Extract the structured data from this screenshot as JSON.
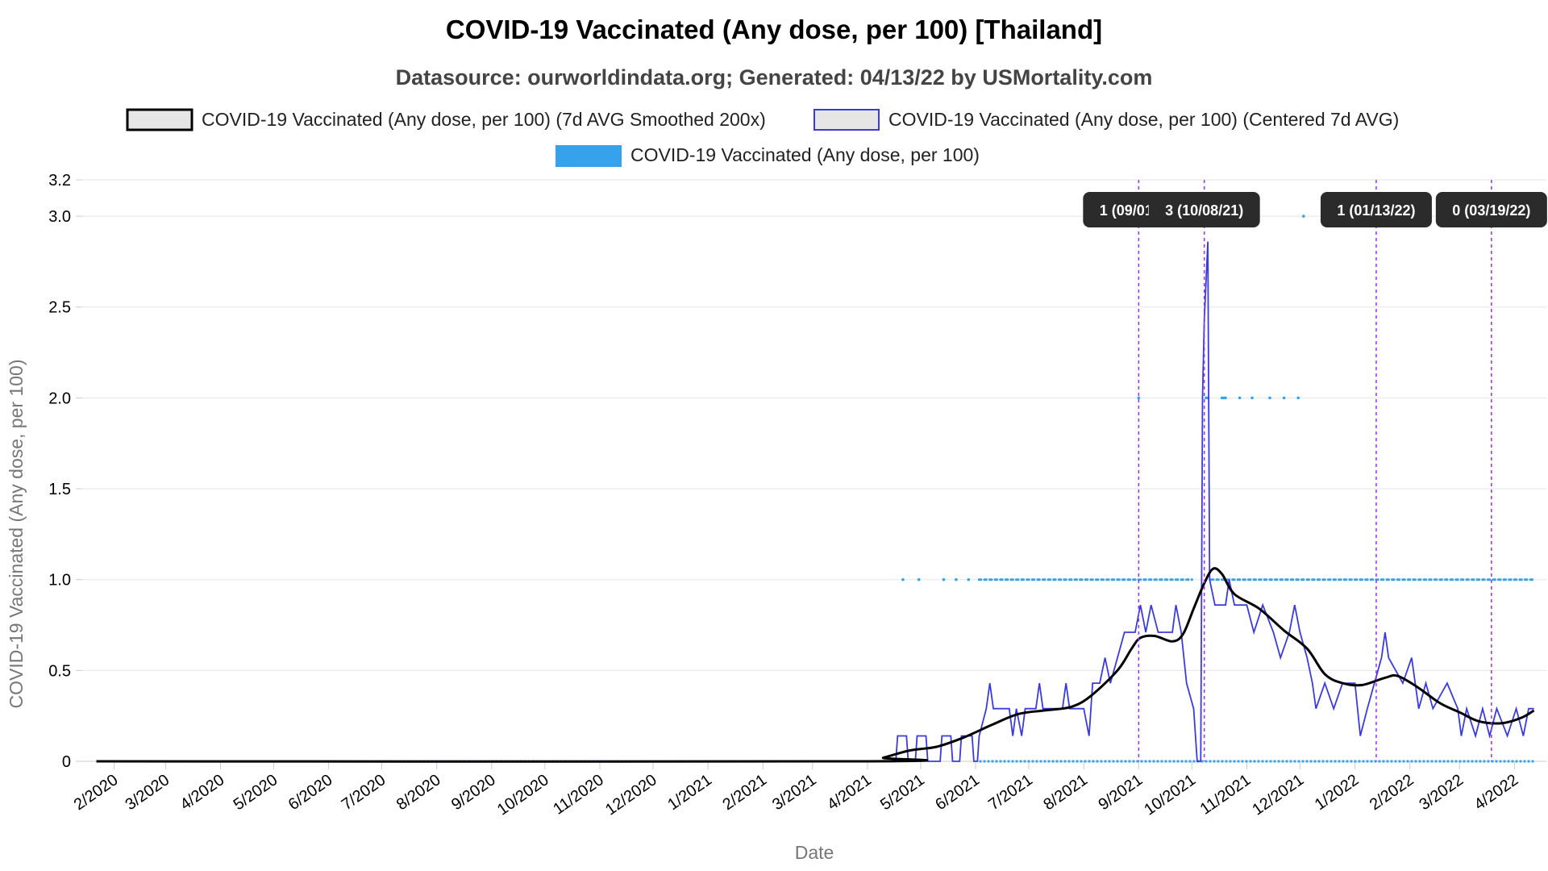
{
  "page": {
    "title": "COVID-19 Vaccinated (Any dose, per 100) [Thailand]",
    "subtitle": "Datasource: ourworldindata.org; Generated: 04/13/22 by USMortality.com"
  },
  "legend": [
    {
      "label": "COVID-19 Vaccinated (Any dose, per 100) (7d AVG Smoothed 200x)",
      "stroke": "#000000",
      "fill": "#e6e6e6"
    },
    {
      "label": "COVID-19 Vaccinated (Any dose, per 100) (Centered 7d AVG)",
      "stroke": "#3b3bdb",
      "fill": "#e6e6e6"
    },
    {
      "label": "COVID-19 Vaccinated (Any dose, per 100)",
      "stroke": "#36a2eb",
      "fill": "#36a2eb"
    }
  ],
  "colors": {
    "smoothed": "#000000",
    "centered": "#3b3bdb",
    "raw": "#36a2eb",
    "annotation_line": "#9b30ff",
    "annotation_box": "#2b2b2b",
    "grid": "#e5e5e5"
  },
  "chart_data": {
    "type": "line",
    "xlabel": "Date",
    "ylabel": "COVID-19 Vaccinated (Any dose, per 100)",
    "x_range": [
      "2020-01-22",
      "2022-04-12"
    ],
    "ylim": [
      0,
      3.2
    ],
    "yticks": [
      {
        "value": 0,
        "label": "0"
      },
      {
        "value": 0.5,
        "label": "0.5"
      },
      {
        "value": 1.0,
        "label": "1.0"
      },
      {
        "value": 1.5,
        "label": "1.5"
      },
      {
        "value": 2.0,
        "label": "2.0"
      },
      {
        "value": 2.5,
        "label": "2.5"
      },
      {
        "value": 3.0,
        "label": "3.0"
      },
      {
        "value": 3.2,
        "label": "3.2"
      }
    ],
    "xticks": [
      {
        "date": "2020-02-01",
        "label": "2/2020"
      },
      {
        "date": "2020-03-01",
        "label": "3/2020"
      },
      {
        "date": "2020-04-01",
        "label": "4/2020"
      },
      {
        "date": "2020-05-01",
        "label": "5/2020"
      },
      {
        "date": "2020-06-01",
        "label": "6/2020"
      },
      {
        "date": "2020-07-01",
        "label": "7/2020"
      },
      {
        "date": "2020-08-01",
        "label": "8/2020"
      },
      {
        "date": "2020-09-01",
        "label": "9/2020"
      },
      {
        "date": "2020-10-01",
        "label": "10/2020"
      },
      {
        "date": "2020-11-01",
        "label": "11/2020"
      },
      {
        "date": "2020-12-01",
        "label": "12/2020"
      },
      {
        "date": "2021-01-01",
        "label": "1/2021"
      },
      {
        "date": "2021-02-01",
        "label": "2/2021"
      },
      {
        "date": "2021-03-01",
        "label": "3/2021"
      },
      {
        "date": "2021-04-01",
        "label": "4/2021"
      },
      {
        "date": "2021-05-01",
        "label": "5/2021"
      },
      {
        "date": "2021-06-01",
        "label": "6/2021"
      },
      {
        "date": "2021-07-01",
        "label": "7/2021"
      },
      {
        "date": "2021-08-01",
        "label": "8/2021"
      },
      {
        "date": "2021-09-01",
        "label": "9/2021"
      },
      {
        "date": "2021-10-01",
        "label": "10/2021"
      },
      {
        "date": "2021-11-01",
        "label": "11/2021"
      },
      {
        "date": "2021-12-01",
        "label": "12/2021"
      },
      {
        "date": "2022-01-01",
        "label": "1/2022"
      },
      {
        "date": "2022-02-01",
        "label": "2/2022"
      },
      {
        "date": "2022-03-01",
        "label": "3/2022"
      },
      {
        "date": "2022-04-01",
        "label": "4/2022"
      }
    ],
    "grid": true,
    "legend_position": "top",
    "series": [
      {
        "name": "COVID-19 Vaccinated (Any dose, per 100) (7d AVG Smoothed 200x)",
        "style": "line",
        "points": [
          [
            "2020-01-22",
            0
          ],
          [
            "2021-03-31",
            0
          ],
          [
            "2021-04-10",
            0.02
          ],
          [
            "2021-04-25",
            0.06
          ],
          [
            "2021-05-10",
            0.08
          ],
          [
            "2021-05-25",
            0.13
          ],
          [
            "2021-06-10",
            0.2
          ],
          [
            "2021-06-25",
            0.26
          ],
          [
            "2021-07-10",
            0.28
          ],
          [
            "2021-07-25",
            0.3
          ],
          [
            "2021-08-05",
            0.36
          ],
          [
            "2021-08-20",
            0.5
          ],
          [
            "2021-08-28",
            0.62
          ],
          [
            "2021-09-02",
            0.68
          ],
          [
            "2021-09-10",
            0.69
          ],
          [
            "2021-09-20",
            0.66
          ],
          [
            "2021-09-26",
            0.7
          ],
          [
            "2021-10-02",
            0.84
          ],
          [
            "2021-10-08",
            0.98
          ],
          [
            "2021-10-13",
            1.06
          ],
          [
            "2021-10-18",
            1.03
          ],
          [
            "2021-10-25",
            0.92
          ],
          [
            "2021-11-08",
            0.84
          ],
          [
            "2021-11-22",
            0.72
          ],
          [
            "2021-12-05",
            0.62
          ],
          [
            "2021-12-15",
            0.48
          ],
          [
            "2021-12-25",
            0.43
          ],
          [
            "2022-01-05",
            0.42
          ],
          [
            "2022-01-18",
            0.46
          ],
          [
            "2022-01-25",
            0.47
          ],
          [
            "2022-02-05",
            0.41
          ],
          [
            "2022-02-18",
            0.32
          ],
          [
            "2022-03-01",
            0.27
          ],
          [
            "2022-03-12",
            0.22
          ],
          [
            "2022-03-25",
            0.21
          ],
          [
            "2022-04-05",
            0.24
          ],
          [
            "2022-04-12",
            0.28
          ]
        ]
      },
      {
        "name": "COVID-19 Vaccinated (Any dose, per 100) (Centered 7d AVG)",
        "style": "step",
        "points": [
          [
            "2020-01-22",
            0
          ],
          [
            "2021-04-17",
            0
          ],
          [
            "2021-04-18",
            0.14
          ],
          [
            "2021-04-23",
            0.14
          ],
          [
            "2021-04-24",
            0
          ],
          [
            "2021-04-28",
            0
          ],
          [
            "2021-04-29",
            0.14
          ],
          [
            "2021-05-04",
            0.14
          ],
          [
            "2021-05-05",
            0
          ],
          [
            "2021-05-12",
            0
          ],
          [
            "2021-05-13",
            0.14
          ],
          [
            "2021-05-18",
            0.14
          ],
          [
            "2021-05-19",
            0
          ],
          [
            "2021-05-23",
            0
          ],
          [
            "2021-05-24",
            0.14
          ],
          [
            "2021-05-30",
            0.14
          ],
          [
            "2021-05-31",
            0
          ],
          [
            "2021-06-02",
            0
          ],
          [
            "2021-06-03",
            0.14
          ],
          [
            "2021-06-07",
            0.29
          ],
          [
            "2021-06-09",
            0.43
          ],
          [
            "2021-06-11",
            0.29
          ],
          [
            "2021-06-20",
            0.29
          ],
          [
            "2021-06-22",
            0.14
          ],
          [
            "2021-06-24",
            0.29
          ],
          [
            "2021-06-27",
            0.14
          ],
          [
            "2021-06-29",
            0.29
          ],
          [
            "2021-07-05",
            0.29
          ],
          [
            "2021-07-07",
            0.43
          ],
          [
            "2021-07-09",
            0.29
          ],
          [
            "2021-07-20",
            0.29
          ],
          [
            "2021-07-22",
            0.43
          ],
          [
            "2021-07-24",
            0.29
          ],
          [
            "2021-08-01",
            0.29
          ],
          [
            "2021-08-04",
            0.14
          ],
          [
            "2021-08-06",
            0.43
          ],
          [
            "2021-08-10",
            0.43
          ],
          [
            "2021-08-13",
            0.57
          ],
          [
            "2021-08-16",
            0.43
          ],
          [
            "2021-08-20",
            0.57
          ],
          [
            "2021-08-24",
            0.71
          ],
          [
            "2021-08-30",
            0.71
          ],
          [
            "2021-09-02",
            0.86
          ],
          [
            "2021-09-05",
            0.71
          ],
          [
            "2021-09-08",
            0.86
          ],
          [
            "2021-09-12",
            0.71
          ],
          [
            "2021-09-20",
            0.71
          ],
          [
            "2021-09-22",
            0.86
          ],
          [
            "2021-09-25",
            0.71
          ],
          [
            "2021-09-28",
            0.43
          ],
          [
            "2021-10-02",
            0.29
          ],
          [
            "2021-10-04",
            0
          ],
          [
            "2021-10-06",
            0
          ],
          [
            "2021-10-07",
            2.0
          ],
          [
            "2021-10-08",
            2.43
          ],
          [
            "2021-10-10",
            2.86
          ],
          [
            "2021-10-11",
            1.0
          ],
          [
            "2021-10-14",
            0.86
          ],
          [
            "2021-10-20",
            0.86
          ],
          [
            "2021-10-22",
            1.0
          ],
          [
            "2021-10-25",
            0.86
          ],
          [
            "2021-11-01",
            0.86
          ],
          [
            "2021-11-05",
            0.71
          ],
          [
            "2021-11-10",
            0.86
          ],
          [
            "2021-11-16",
            0.71
          ],
          [
            "2021-11-20",
            0.57
          ],
          [
            "2021-11-25",
            0.71
          ],
          [
            "2021-11-28",
            0.86
          ],
          [
            "2021-12-01",
            0.71
          ],
          [
            "2021-12-05",
            0.57
          ],
          [
            "2021-12-08",
            0.43
          ],
          [
            "2021-12-10",
            0.29
          ],
          [
            "2021-12-15",
            0.43
          ],
          [
            "2021-12-20",
            0.29
          ],
          [
            "2021-12-25",
            0.43
          ],
          [
            "2022-01-01",
            0.43
          ],
          [
            "2022-01-04",
            0.14
          ],
          [
            "2022-01-08",
            0.29
          ],
          [
            "2022-01-12",
            0.43
          ],
          [
            "2022-01-16",
            0.57
          ],
          [
            "2022-01-18",
            0.71
          ],
          [
            "2022-01-20",
            0.57
          ],
          [
            "2022-01-28",
            0.43
          ],
          [
            "2022-02-02",
            0.57
          ],
          [
            "2022-02-06",
            0.29
          ],
          [
            "2022-02-10",
            0.43
          ],
          [
            "2022-02-14",
            0.29
          ],
          [
            "2022-02-22",
            0.43
          ],
          [
            "2022-02-28",
            0.29
          ],
          [
            "2022-03-02",
            0.14
          ],
          [
            "2022-03-05",
            0.29
          ],
          [
            "2022-03-10",
            0.14
          ],
          [
            "2022-03-14",
            0.29
          ],
          [
            "2022-03-18",
            0.14
          ],
          [
            "2022-03-22",
            0.29
          ],
          [
            "2022-03-28",
            0.14
          ],
          [
            "2022-04-02",
            0.29
          ],
          [
            "2022-04-06",
            0.14
          ],
          [
            "2022-04-09",
            0.29
          ],
          [
            "2022-04-12",
            0.29
          ]
        ]
      },
      {
        "name": "COVID-19 Vaccinated (Any dose, per 100)",
        "style": "points",
        "zero_segments": [
          [
            "2020-01-22",
            "2021-04-17"
          ],
          [
            "2021-06-03",
            "2022-04-12"
          ]
        ],
        "dense_ones": [
          [
            "2021-06-03",
            "2021-10-01"
          ],
          [
            "2021-10-12",
            "2022-04-12"
          ]
        ],
        "points": [
          [
            "2021-04-21",
            1
          ],
          [
            "2021-04-30",
            1
          ],
          [
            "2021-05-14",
            1
          ],
          [
            "2021-05-21",
            1
          ],
          [
            "2021-05-28",
            1
          ],
          [
            "2021-09-01",
            2
          ],
          [
            "2021-10-09",
            2
          ],
          [
            "2021-10-10",
            2
          ],
          [
            "2021-10-18",
            2
          ],
          [
            "2021-10-19",
            2
          ],
          [
            "2021-10-20",
            2
          ],
          [
            "2021-10-28",
            2
          ],
          [
            "2021-11-04",
            2
          ],
          [
            "2021-11-14",
            2
          ],
          [
            "2021-11-22",
            2
          ],
          [
            "2021-11-30",
            2
          ],
          [
            "2021-12-03",
            3
          ]
        ]
      }
    ],
    "annotations": [
      {
        "date": "2021-09-01",
        "label": "1 (09/01/21)"
      },
      {
        "date": "2021-10-08",
        "label": "3 (10/08/21)"
      },
      {
        "date": "2022-01-13",
        "label": "1 (01/13/22)"
      },
      {
        "date": "2022-03-19",
        "label": "0 (03/19/22)"
      }
    ]
  }
}
